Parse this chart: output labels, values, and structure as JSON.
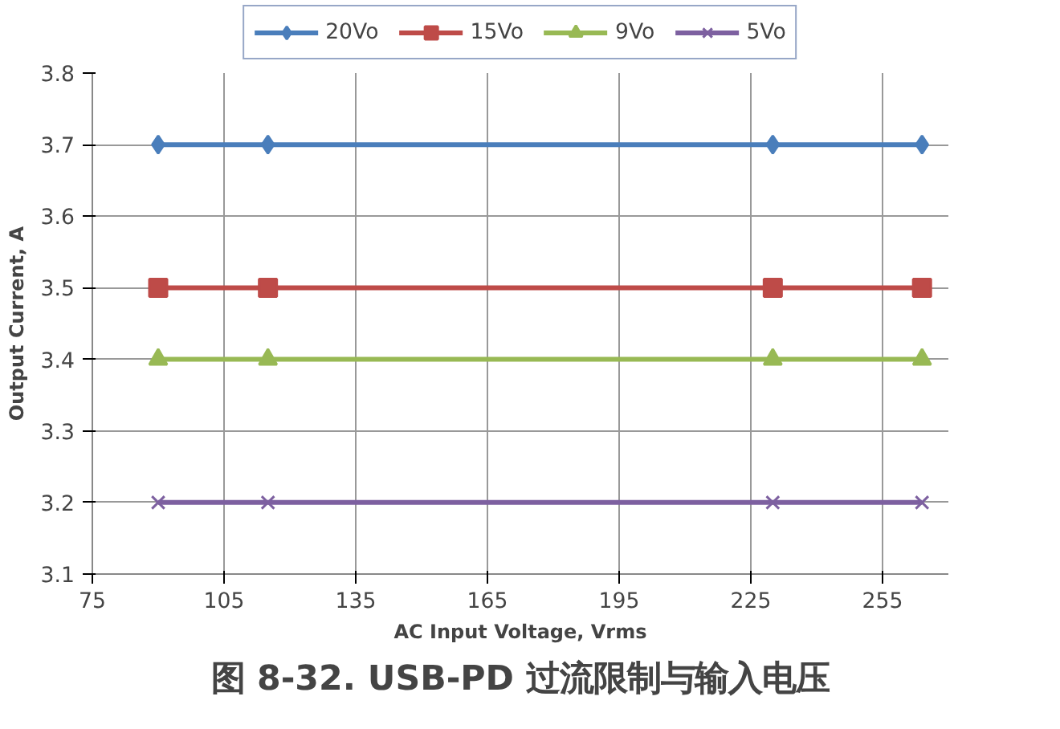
{
  "chart_data": {
    "type": "line",
    "title": "图 8-32. USB-PD 过流限制与输入电压",
    "xlabel": "AC Input Voltage, Vrms",
    "ylabel": "Output Current, A",
    "x": [
      90,
      115,
      230,
      264
    ],
    "series": [
      {
        "name": "20Vo",
        "color": "#4a7ebb",
        "marker": "diamond",
        "values": [
          3.7,
          3.7,
          3.7,
          3.7
        ]
      },
      {
        "name": "15Vo",
        "color": "#be4b48",
        "marker": "square",
        "values": [
          3.5,
          3.5,
          3.5,
          3.5
        ]
      },
      {
        "name": "9Vo",
        "color": "#98b954",
        "marker": "triangle",
        "values": [
          3.4,
          3.4,
          3.4,
          3.4
        ]
      },
      {
        "name": "5Vo",
        "color": "#7d60a0",
        "marker": "cross",
        "values": [
          3.2,
          3.2,
          3.2,
          3.2
        ]
      }
    ],
    "xlim": [
      75,
      270
    ],
    "xticks": [
      75,
      105,
      135,
      165,
      195,
      225,
      255
    ],
    "ylim": [
      3.1,
      3.8
    ],
    "yticks": [
      3.1,
      3.2,
      3.3,
      3.4,
      3.5,
      3.6,
      3.7,
      3.8
    ],
    "grid": true,
    "legend": "top",
    "line_style": "solid"
  }
}
